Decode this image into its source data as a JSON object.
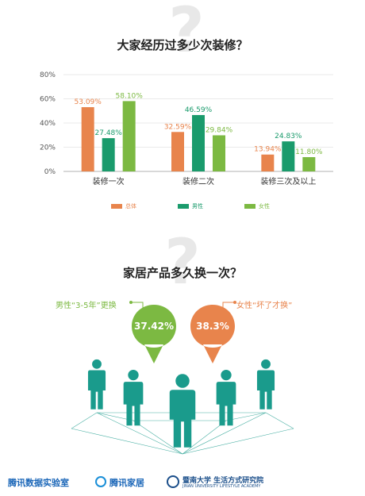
{
  "colors": {
    "total": "#e8844c",
    "male": "#1a9b6c",
    "female": "#7cb942",
    "people": "#1a9b8c"
  },
  "section1": {
    "title": "大家经历过多少次装修？"
  },
  "chart_data": {
    "type": "bar",
    "categories": [
      "装修一次",
      "装修二次",
      "装修三次及以上"
    ],
    "series": [
      {
        "name": "总体",
        "values": [
          53.09,
          32.59,
          13.94
        ],
        "labels": [
          "53.09%",
          "32.59%",
          "13.94%"
        ]
      },
      {
        "name": "男性",
        "values": [
          27.48,
          46.59,
          24.83
        ],
        "labels": [
          "27.48%",
          "46.59%",
          "24.83%"
        ]
      },
      {
        "name": "女性",
        "values": [
          58.1,
          29.84,
          11.8
        ],
        "labels": [
          "58.10%",
          "29.84%",
          "11.80%"
        ]
      }
    ],
    "ylim": [
      0,
      80
    ],
    "yticks": [
      "0%",
      "20%",
      "40%",
      "60%",
      "80%"
    ],
    "grid": true,
    "legend": "bottom"
  },
  "section2": {
    "title": "家居产品多久换一次？",
    "male_label": "男性“3-5年”更换",
    "male_value": "37.42%",
    "female_label": "女性“坏了才换”",
    "female_value": "38.3%"
  },
  "footer": {
    "brand1": "腾讯数据实验室",
    "brand2": "腾讯家居",
    "brand3": "暨南大学 生活方式研究院",
    "brand3_sub": "JINAN UNIVERSITY LIFESTYLE ACADEMY"
  }
}
